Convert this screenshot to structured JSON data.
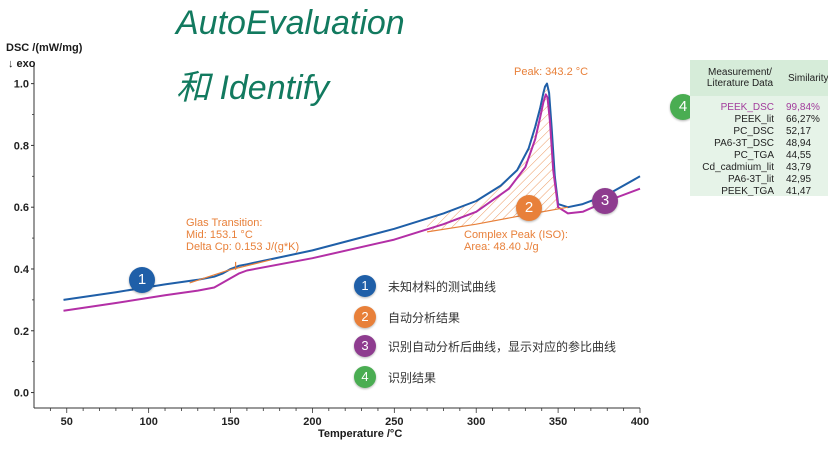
{
  "titles": {
    "line1": "AutoEvaluation",
    "line2": "和 Identify"
  },
  "colors": {
    "measured": "#1f5fa8",
    "reference": "#b32fa6",
    "analysis": "#e8803a",
    "title": "#127a5f",
    "badge1": "#1f5fa8",
    "badge2": "#e8803a",
    "badge3": "#8e3c8f",
    "badge4": "#4aad52"
  },
  "chart_data": {
    "type": "line",
    "xlabel": "Temperature /°C",
    "ylabel": "DSC /(mW/mg)",
    "ylabel_sub": "↓ exo",
    "xlim": [
      30,
      400
    ],
    "ylim": [
      -0.05,
      1.07
    ],
    "xticks": [
      50,
      100,
      150,
      200,
      250,
      300,
      350,
      400
    ],
    "yticks": [
      0.0,
      0.2,
      0.4,
      0.6,
      0.8,
      1.0
    ],
    "grid": false,
    "series": [
      {
        "role": "measured",
        "x": [
          48,
          80,
          110,
          130,
          140,
          145,
          150,
          155,
          160,
          200,
          250,
          280,
          300,
          315,
          325,
          332,
          336,
          339,
          341,
          342,
          343.2,
          344.5,
          346,
          348,
          350,
          356,
          365,
          380,
          400
        ],
        "y": [
          0.3,
          0.325,
          0.35,
          0.365,
          0.375,
          0.385,
          0.4,
          0.41,
          0.415,
          0.46,
          0.53,
          0.58,
          0.62,
          0.67,
          0.72,
          0.79,
          0.86,
          0.92,
          0.97,
          0.99,
          1.0,
          0.97,
          0.86,
          0.7,
          0.61,
          0.6,
          0.61,
          0.64,
          0.7
        ]
      },
      {
        "role": "reference",
        "x": [
          48,
          80,
          110,
          130,
          140,
          145,
          150,
          155,
          160,
          200,
          250,
          280,
          300,
          320,
          330,
          336,
          339,
          341,
          342.5,
          343.5,
          345,
          347,
          350,
          356,
          365,
          380,
          400
        ],
        "y": [
          0.265,
          0.29,
          0.315,
          0.33,
          0.34,
          0.355,
          0.37,
          0.385,
          0.395,
          0.435,
          0.495,
          0.545,
          0.585,
          0.66,
          0.73,
          0.82,
          0.89,
          0.94,
          0.965,
          0.955,
          0.88,
          0.72,
          0.6,
          0.58,
          0.585,
          0.62,
          0.66
        ]
      },
      {
        "role": "baseline",
        "x": [
          270,
          300,
          330,
          356
        ],
        "y": [
          0.52,
          0.545,
          0.575,
          0.6
        ]
      }
    ],
    "annotations": {
      "glass_transition": [
        "Glas Transition:",
        "Mid: 153.1 °C",
        "Delta Cp: 0.153 J/(g*K)"
      ],
      "peak": "Peak: 343.2 °C",
      "complex_peak": [
        "Complex Peak (ISO):",
        "Area: 48.40 J/g"
      ]
    }
  },
  "legend": [
    {
      "num": "1",
      "text": "未知材料的测试曲线"
    },
    {
      "num": "2",
      "text": "自动分析结果"
    },
    {
      "num": "3",
      "text": "识别自动分析后曲线，显示对应的参比曲线"
    },
    {
      "num": "4",
      "text": "识别结果"
    }
  ],
  "markers": {
    "m1": "1",
    "m2": "2",
    "m3": "3",
    "m4": "4"
  },
  "similarity": {
    "header_measurement": "Measurement/ Literature Data",
    "header_similarity": "Similarity",
    "rows": [
      {
        "name": "PEEK_DSC",
        "value": "99,84%"
      },
      {
        "name": "PEEK_lit",
        "value": "66,27%"
      },
      {
        "name": "PC_DSC",
        "value": "52,17"
      },
      {
        "name": "PA6-3T_DSC",
        "value": "48,94"
      },
      {
        "name": "PC_TGA",
        "value": "44,55"
      },
      {
        "name": "Cd_cadmium_lit",
        "value": "43,79"
      },
      {
        "name": "PA6-3T_lit",
        "value": "42,95"
      },
      {
        "name": "PEEK_TGA",
        "value": "41,47"
      }
    ]
  }
}
